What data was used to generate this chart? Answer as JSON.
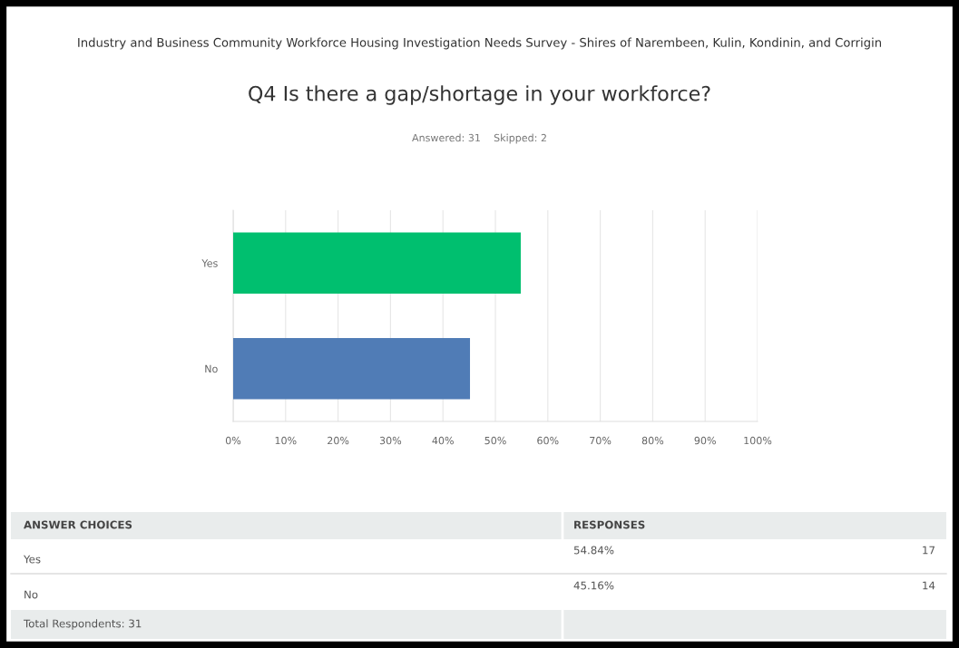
{
  "chart_data": {
    "type": "bar",
    "orientation": "horizontal",
    "title": "Q4 Is there a gap/shortage in your workforce?",
    "subtitle": "Answered: 31    Skipped: 2",
    "categories": [
      "Yes",
      "No"
    ],
    "values": [
      54.84,
      45.16
    ],
    "colors": [
      "#00bf6f",
      "#507cb6"
    ],
    "xlim": [
      0,
      100
    ],
    "xticks": [
      {
        "value": 0,
        "label": "0%"
      },
      {
        "value": 10,
        "label": "10%"
      },
      {
        "value": 20,
        "label": "20%"
      },
      {
        "value": 30,
        "label": "30%"
      },
      {
        "value": 40,
        "label": "40%"
      },
      {
        "value": 50,
        "label": "50%"
      },
      {
        "value": 60,
        "label": "60%"
      },
      {
        "value": 70,
        "label": "70%"
      },
      {
        "value": 80,
        "label": "80%"
      },
      {
        "value": 90,
        "label": "90%"
      },
      {
        "value": 100,
        "label": "100%"
      }
    ],
    "grid": "x",
    "annotations": [
      "Industry and Business Community Workforce Housing Investigation Needs Survey - Shires of Narembeen, Kulin, Kondinin, and Corrigin",
      "ANSWER CHOICES",
      "RESPONSES",
      "17",
      "14",
      "Total Respondents: 31",
      "54.84%",
      "45.16%"
    ]
  }
}
